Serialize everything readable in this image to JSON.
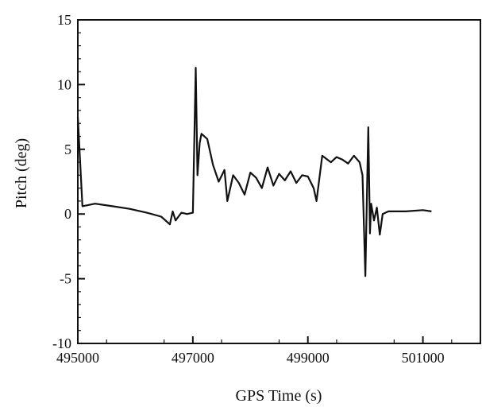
{
  "chart_data": {
    "type": "line",
    "title": "",
    "xlabel": "GPS Time (s)",
    "ylabel": "Pitch (deg)",
    "xlim": [
      495000,
      502000
    ],
    "ylim": [
      -10,
      15
    ],
    "x_ticks": [
      495000,
      497000,
      499000,
      501000
    ],
    "x_tick_labels": [
      "495000",
      "497000",
      "499000",
      "501000"
    ],
    "y_ticks": [
      -10,
      -5,
      0,
      5,
      10,
      15
    ],
    "y_tick_labels": [
      "-10",
      "-5",
      "0",
      "5",
      "10",
      "15"
    ],
    "grid": false,
    "legend": "none",
    "line_color": "#111111",
    "series": [
      {
        "x": [
          495000,
          495080,
          495300,
          495600,
          495900,
          496200,
          496450,
          496600,
          496650,
          496700,
          496800,
          496900,
          497000,
          497050,
          497080,
          497120,
          497150,
          497250,
          497350,
          497450,
          497550,
          497600,
          497700,
          497800,
          497900,
          498000,
          498100,
          498200,
          498300,
          498400,
          498500,
          498600,
          498700,
          498800,
          498900,
          499000,
          499100,
          499150,
          499250,
          499400,
          499500,
          499600,
          499700,
          499800,
          499900,
          499950,
          500000,
          500050,
          500080,
          500100,
          500150,
          500200,
          500250,
          500300,
          500400,
          500700,
          501000,
          501150
        ],
        "y": [
          7.5,
          0.6,
          0.8,
          0.6,
          0.4,
          0.1,
          -0.2,
          -0.8,
          0.2,
          -0.5,
          0.1,
          0.0,
          0.1,
          11.3,
          3.0,
          5.5,
          6.2,
          5.8,
          3.8,
          2.5,
          3.4,
          1.0,
          3.0,
          2.4,
          1.5,
          3.2,
          2.8,
          2.0,
          3.6,
          2.2,
          3.1,
          2.6,
          3.3,
          2.4,
          3.0,
          2.9,
          2.0,
          1.0,
          4.5,
          4.0,
          4.4,
          4.2,
          3.9,
          4.5,
          4.0,
          3.0,
          -4.8,
          6.7,
          -1.5,
          0.8,
          -0.5,
          0.5,
          -1.6,
          0.0,
          0.2,
          0.2,
          0.3,
          0.2
        ]
      }
    ]
  }
}
